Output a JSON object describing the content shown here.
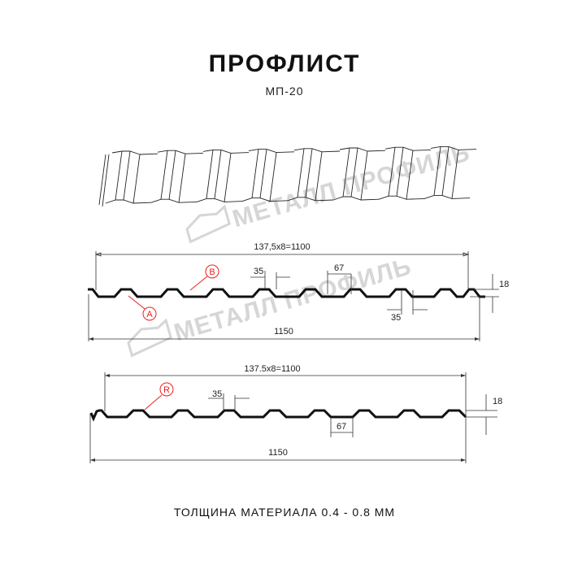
{
  "header": {
    "title": "ПРОФЛИСТ",
    "subtitle": "МП-20"
  },
  "watermark": "МЕТАЛЛ ПРОФИЛЬ",
  "profile_a": {
    "width_useful": "137,5x8=1100",
    "width_total": "1150",
    "crest_top": "35",
    "trough": "67",
    "crest_bottom": "35",
    "height": "18",
    "markers": [
      "B",
      "A"
    ]
  },
  "profile_b": {
    "width_useful": "137.5x8=1100",
    "width_total": "1150",
    "crest_top": "35",
    "trough": "67",
    "height": "18",
    "markers": [
      "R"
    ]
  },
  "footer": "ТОЛЩИНА МАТЕРИАЛА 0.4 - 0.8 ММ",
  "colors": {
    "accent": "#e8211d",
    "line": "#111111",
    "watermark": "#d6d6d6"
  }
}
